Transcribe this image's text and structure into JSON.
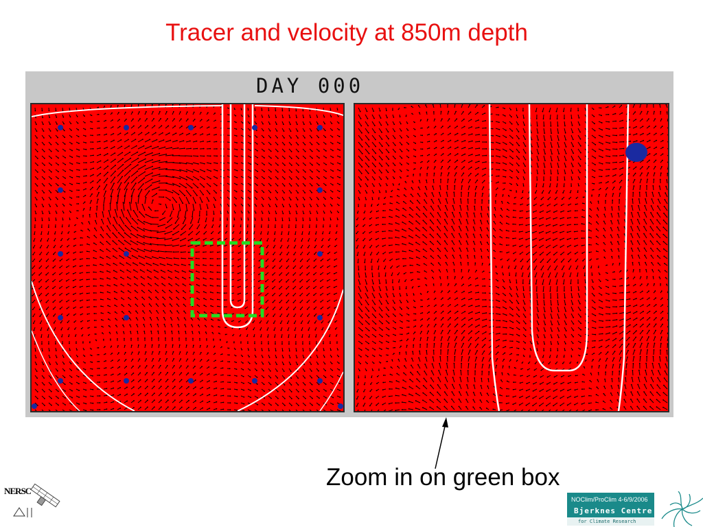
{
  "slide": {
    "title": "Tracer and velocity at 850m depth"
  },
  "figure": {
    "day_label": "DAY 000",
    "colors": {
      "tracer_field": "#ff0000",
      "contour": "#ffffff",
      "dots": "#1a2aa0",
      "zoom_box": "#22dd22",
      "frame": "#c8c8c8"
    },
    "left_panel_icon": "velocity-vector-field",
    "right_panel_icon": "zoomed-velocity-vector-field"
  },
  "annotation": {
    "text": "Zoom in on green box"
  },
  "footer": {
    "nersc_logo_text": "NERSC",
    "badge_date": "NOClim/ProClim 4-6/9/2006",
    "badge_name": "Bjerknes Centre",
    "badge_sub": "for Climate Research"
  }
}
